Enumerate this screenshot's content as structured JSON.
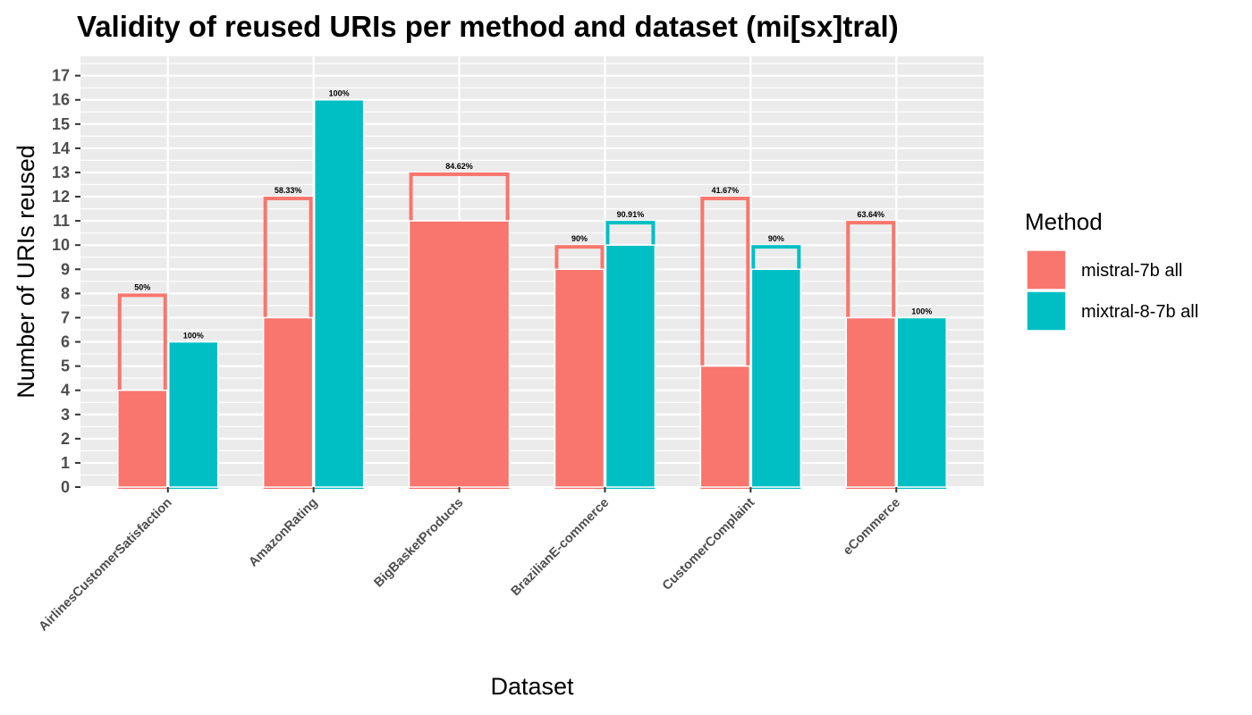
{
  "chart_data": {
    "type": "bar",
    "title": "Validity of reused URIs per method and dataset (mi[sx]tral)",
    "xlabel": "Dataset",
    "ylabel": "Number of URIs reused",
    "ylim": [
      0,
      17.8
    ],
    "yticks": [
      0,
      1,
      2,
      3,
      4,
      5,
      6,
      7,
      8,
      9,
      10,
      11,
      12,
      13,
      14,
      15,
      16,
      17
    ],
    "grid": true,
    "legend_position": "right",
    "legend_title": "Method",
    "categories": [
      "AirlinesCustomerSatisfaction",
      "AmazonRating",
      "BigBasketProducts",
      "BrazilianE-commerce",
      "CustomerComplaint",
      "eCommerce"
    ],
    "series": [
      {
        "name": "mistral-7b all",
        "color": "#F8766D",
        "total": [
          8,
          12,
          13,
          10,
          12,
          11
        ],
        "valid": [
          4,
          7,
          11,
          9,
          5,
          7
        ],
        "labels": [
          "50%",
          "58.33%",
          "84.62%",
          "90%",
          "41.67%",
          "63.64%"
        ]
      },
      {
        "name": "mixtral-8-7b all",
        "color": "#00BFC4",
        "total": [
          6,
          16,
          null,
          11,
          10,
          7
        ],
        "valid": [
          6,
          16,
          null,
          10,
          9,
          7
        ],
        "labels": [
          "100%",
          "100%",
          null,
          "90.91%",
          "90%",
          "100%"
        ]
      }
    ]
  }
}
